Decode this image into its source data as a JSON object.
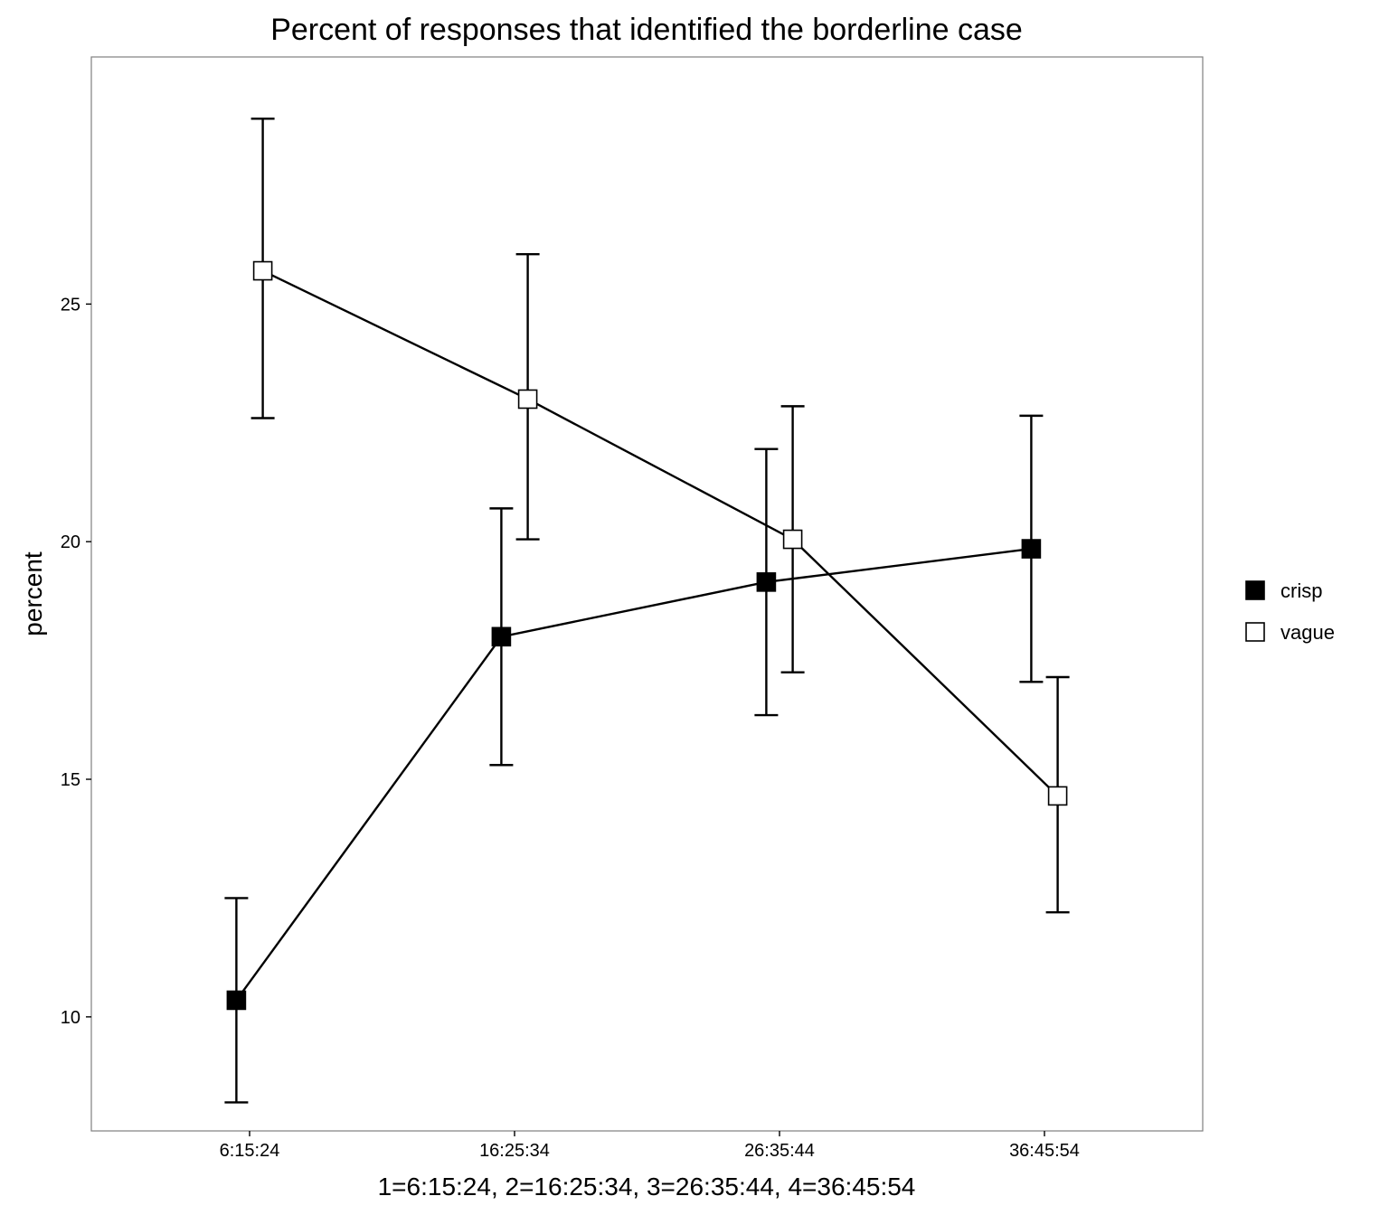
{
  "chart_data": {
    "type": "line",
    "title": "Percent of responses that identified the borderline case",
    "xlabel": "1=6:15:24, 2=16:25:34, 3=26:35:44, 4=36:45:54",
    "ylabel": "percent",
    "categories": [
      "6:15:24",
      "16:25:34",
      "26:35:44",
      "36:45:54"
    ],
    "yticks": [
      10,
      15,
      20,
      25
    ],
    "ylim": [
      7.6,
      30.2
    ],
    "grid": false,
    "legend": "right",
    "series": [
      {
        "name": "crisp",
        "marker": "filled-square",
        "color": "#000000",
        "values": [
          10.35,
          18.0,
          19.15,
          19.85
        ],
        "lower": [
          8.2,
          15.3,
          16.35,
          17.05
        ],
        "upper": [
          12.5,
          20.7,
          21.95,
          22.65
        ]
      },
      {
        "name": "vague",
        "marker": "open-square",
        "color": "#ffffff",
        "values": [
          25.7,
          23.0,
          20.05,
          14.65
        ],
        "lower": [
          22.6,
          20.05,
          17.25,
          12.2
        ],
        "upper": [
          28.9,
          26.05,
          22.85,
          17.15
        ]
      }
    ]
  }
}
